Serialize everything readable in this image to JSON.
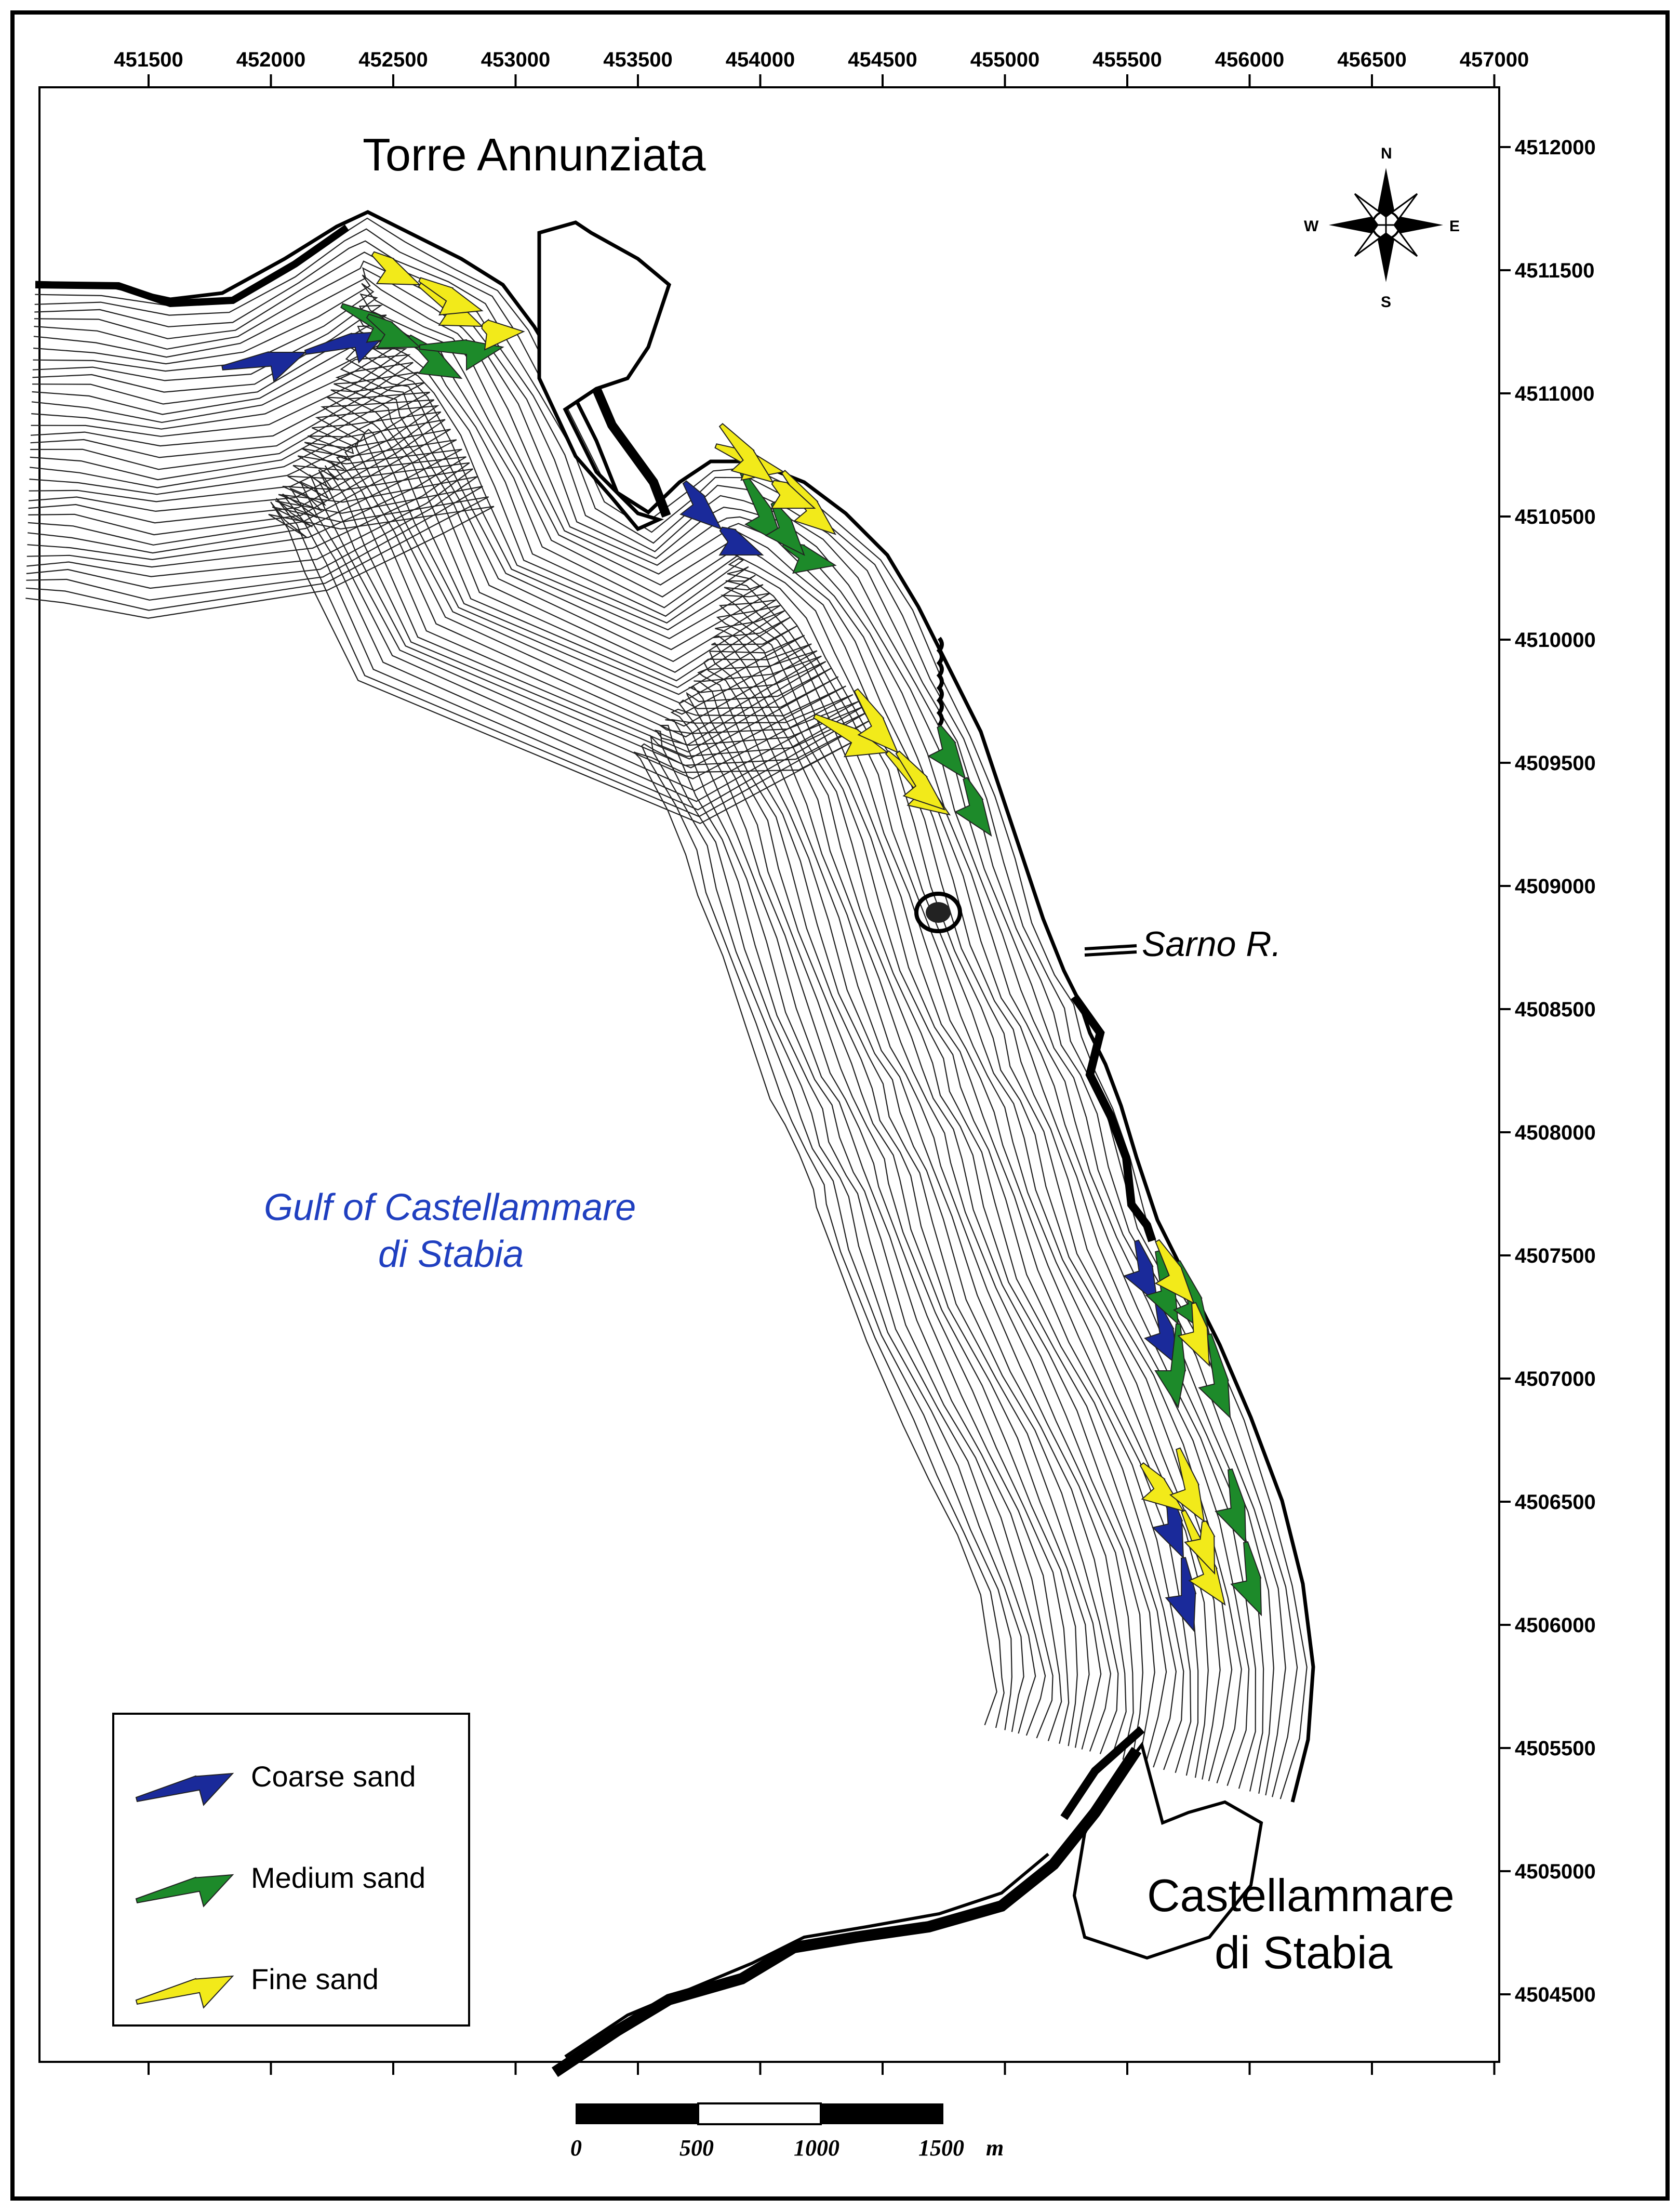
{
  "places": {
    "torre": "Torre Annunziata",
    "sarno": "Sarno R.",
    "gulf_line1": "Gulf of Castellammare",
    "gulf_line2": "di Stabia",
    "castellammare_line1": "Castellammare",
    "castellammare_line2": "di Stabia"
  },
  "x_ticks": [
    "451500",
    "452000",
    "452500",
    "453000",
    "453500",
    "454000",
    "454500",
    "455000",
    "455500",
    "456000",
    "456500",
    "457000"
  ],
  "y_ticks": [
    "4512000",
    "4511500",
    "4511000",
    "4510500",
    "4510000",
    "4509500",
    "4509000",
    "4508500",
    "4508000",
    "4507500",
    "4507000",
    "4506500",
    "4506000",
    "4505500",
    "4505000",
    "4504500"
  ],
  "compass": {
    "n": "N",
    "s": "S",
    "e": "E",
    "w": "W"
  },
  "scale_bar": {
    "labels": [
      "0",
      "500",
      "1000",
      "1500"
    ],
    "unit": "m"
  },
  "legend": [
    {
      "label": "Coarse sand",
      "color": "#1a2a9a"
    },
    {
      "label": "Medium sand",
      "color": "#1d8a2a"
    },
    {
      "label": "Fine sand",
      "color": "#f2ea1a"
    }
  ],
  "colors": {
    "coarse": "#1a2a9a",
    "medium": "#1d8a2a",
    "fine": "#f2ea1a",
    "gulf_label": "#1f3fc0"
  }
}
